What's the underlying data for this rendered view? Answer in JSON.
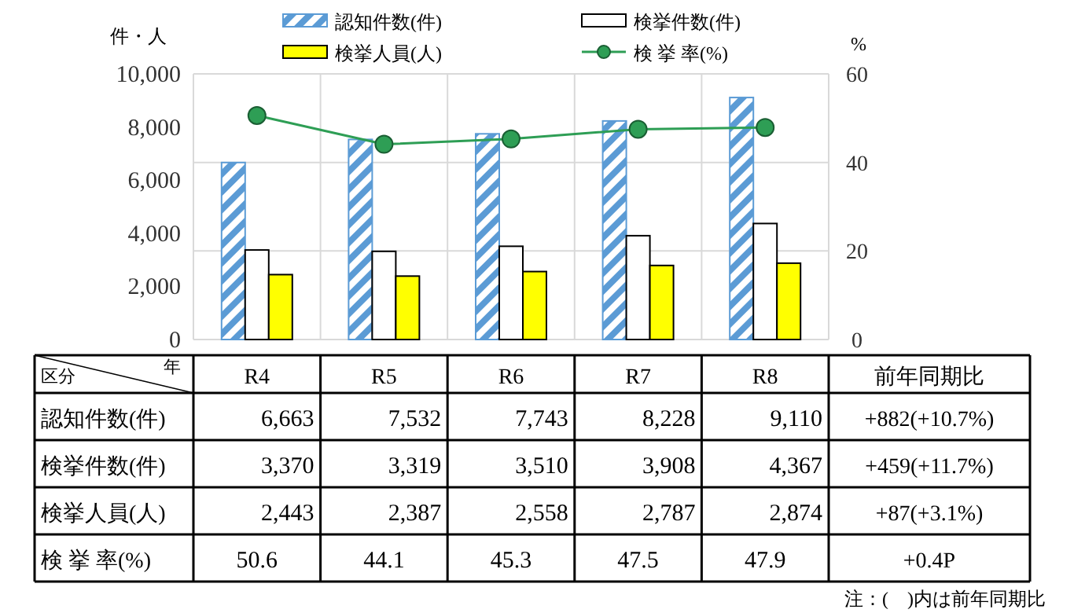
{
  "chart_data": {
    "type": "bar",
    "categories": [
      "R4",
      "R5",
      "R6",
      "R7",
      "R8"
    ],
    "series": [
      {
        "name": "認知件数(件)",
        "color": "#5b9bd5",
        "values": [
          6663,
          7532,
          7743,
          8228,
          9110
        ],
        "value_labels": [
          "6,663",
          "7,532",
          "7,743",
          "8,228",
          "9,110"
        ]
      },
      {
        "name": "検挙件数(件)",
        "color": "#ffffff",
        "values": [
          3370,
          3319,
          3510,
          3908,
          4367
        ],
        "value_labels": [
          "3,370",
          "3,319",
          "3,510",
          "3,908",
          "4,367"
        ]
      },
      {
        "name": "検挙人員(人)",
        "color": "#ffff00",
        "values": [
          2443,
          2387,
          2558,
          2787,
          2874
        ],
        "value_labels": [
          "2,443",
          "2,387",
          "2,558",
          "2,787",
          "2,874"
        ]
      },
      {
        "name": "検 挙 率(%)",
        "type": "line",
        "axis": "y2",
        "color": "#2e9e55",
        "marker": "circle",
        "values": [
          50.6,
          44.1,
          45.3,
          47.5,
          47.9
        ],
        "value_labels": [
          "50.6",
          "44.1",
          "45.3",
          "47.5",
          "47.9"
        ]
      }
    ],
    "ylabel": "件・人",
    "y2label": "%",
    "ylim": [
      0,
      10000
    ],
    "yticks": [
      0,
      {
        "value": 2000,
        "label": "2,000"
      },
      {
        "value": 4000,
        "label": "4,000"
      },
      {
        "value": 6000,
        "label": "6,000"
      },
      {
        "value": 8000,
        "label": "8,000"
      },
      {
        "value": 10000,
        "label": "10,000"
      }
    ],
    "y2lim": [
      0,
      60
    ],
    "y2ticks": [
      0,
      20,
      40,
      60
    ],
    "grid": true,
    "legend": "top",
    "annotations": [
      "区分",
      "年",
      "前年同期比",
      "+882(+10.7%)",
      "+459(+11.7%)",
      "+87(+3.1%)",
      "+0.4P",
      "注：(　)内は前年同期比"
    ]
  }
}
